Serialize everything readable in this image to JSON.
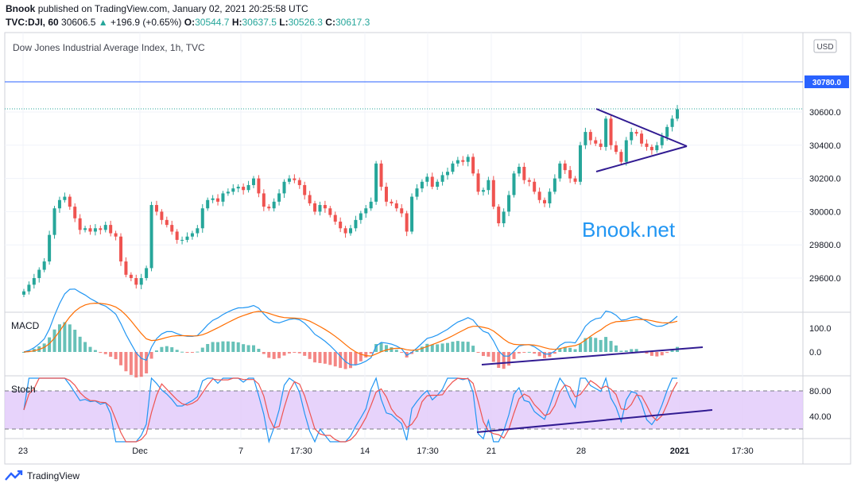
{
  "header": {
    "publisher": "Bnook",
    "published_text": "published on TradingView.com, January 02, 2021 20:25:58 UTC",
    "symbol": "TVC:DJI, 60",
    "last": "30606.5",
    "change": "+196.9 (+0.65%)",
    "o_label": "O:",
    "o": "30544.7",
    "h_label": "H:",
    "h": "30637.5",
    "l_label": "L:",
    "l": "30526.3",
    "c_label": "C:",
    "c": "30617.3"
  },
  "pane_title": "Dow Jones Industrial Average Index, 1h, TVC",
  "currency_badge": "USD",
  "watermark": "Bnook.net",
  "macd_label": "MACD",
  "stoch_label": "Stoch",
  "footer_brand": "TradingView",
  "price_line_label": "30780.0",
  "colors": {
    "up": "#26a69a",
    "down": "#ef5350",
    "macd": "#2196f3",
    "signal": "#ff6d00",
    "trend": "#311b92",
    "stoch_bg": "#e1c8fa",
    "price_line": "#2962ff"
  },
  "chart_data": {
    "type": "candlestick",
    "x_ticks": [
      "23",
      "Dec",
      "7",
      "17:30",
      "14",
      "17:30",
      "21",
      "28",
      "2021",
      "17:30"
    ],
    "y_ticks": [
      "30600.0",
      "30400.0",
      "30200.0",
      "30000.0",
      "29800.0",
      "29600.0"
    ],
    "price_line": 30780.0,
    "ohlc_close_series": [
      29520,
      29560,
      29600,
      29650,
      29700,
      29860,
      30020,
      30070,
      30090,
      30030,
      29960,
      29890,
      29900,
      29880,
      29900,
      29890,
      29920,
      29870,
      29850,
      29700,
      29620,
      29600,
      29560,
      29600,
      29660,
      30040,
      30000,
      29950,
      29920,
      29880,
      29830,
      29830,
      29850,
      29870,
      29900,
      30020,
      30070,
      30080,
      30060,
      30110,
      30120,
      30140,
      30150,
      30130,
      30160,
      30200,
      30110,
      30030,
      30020,
      30060,
      30110,
      30180,
      30200,
      30190,
      30160,
      30100,
      30050,
      30000,
      30040,
      30020,
      29980,
      29940,
      29900,
      29870,
      29900,
      29950,
      29990,
      30020,
      30060,
      30290,
      30150,
      30060,
      30050,
      30020,
      29990,
      29880,
      30090,
      30140,
      30180,
      30210,
      30150,
      30180,
      30220,
      30240,
      30290,
      30310,
      30300,
      30330,
      30230,
      30120,
      30130,
      30190,
      30030,
      29930,
      30000,
      30100,
      30230,
      30270,
      30190,
      30180,
      30120,
      30070,
      30050,
      30120,
      30200,
      30290,
      30250,
      30200,
      30180,
      30400,
      30480,
      30430,
      30410,
      30390,
      30560,
      30400,
      30360,
      30300,
      30430,
      30480,
      30470,
      30410,
      30390,
      30370,
      30400,
      30450,
      30510,
      30560,
      30617.3
    ],
    "macd_y_ticks": [
      "100.0",
      "0.0"
    ],
    "stoch_y_ticks": [
      "80.00",
      "40.00"
    ]
  }
}
